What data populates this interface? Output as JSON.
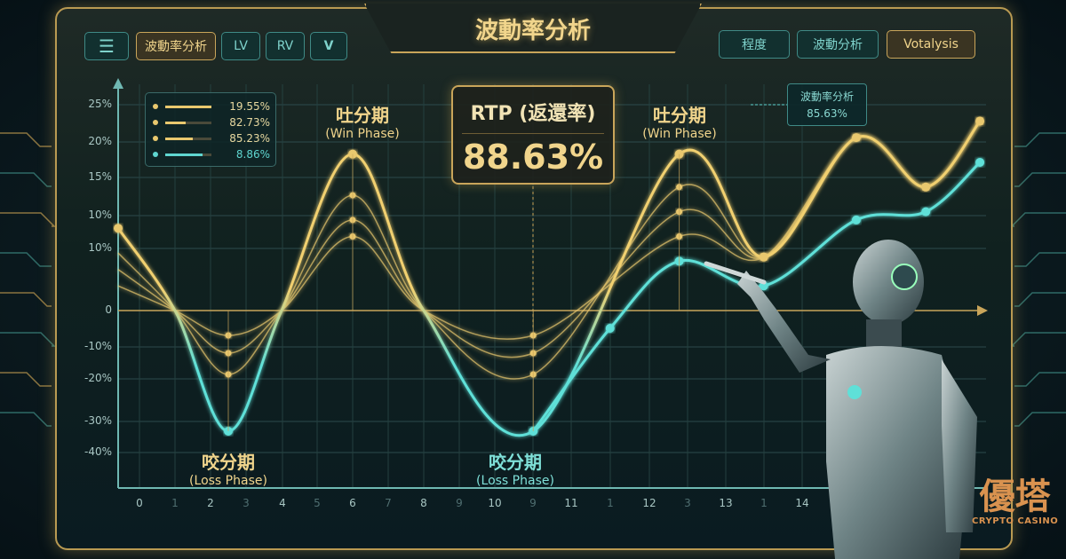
{
  "header": {
    "title": "波動率分析"
  },
  "toolbar": {
    "menu_icon": "hamburger-menu-icon",
    "left_buttons": [
      "波動率分析",
      "LV",
      "RV"
    ],
    "dropdown_icon": "chevron-down-icon",
    "right_buttons": [
      "程度",
      "波動分析",
      "Votalysis"
    ]
  },
  "legend": [
    {
      "value": "19.55%",
      "fill": 1.0,
      "color": "#e9c86e"
    },
    {
      "value": "82.73%",
      "fill": 0.45,
      "color": "#e9c86e"
    },
    {
      "value": "85.23%",
      "fill": 0.6,
      "color": "#e9c86e"
    },
    {
      "value": "8.86%",
      "fill": 0.8,
      "color": "#5fd6d0"
    }
  ],
  "rtp": {
    "label": "RTP (返還率)",
    "value": "88.63%"
  },
  "tooltip": {
    "title": "波動率分析",
    "value": "85.63%"
  },
  "phases": {
    "win1": {
      "zh": "吐分期",
      "en": "(Win Phase)"
    },
    "win2": {
      "zh": "吐分期",
      "en": "(Win Phase)"
    },
    "loss1": {
      "zh": "咬分期",
      "en": "(Loss Phase)"
    },
    "loss2": {
      "zh": "咬分期",
      "en": "(Loss Phase)"
    }
  },
  "brand": {
    "zh": "優塔",
    "en": "CRYPTO CASINO"
  },
  "colors": {
    "gold": "#e9c86e",
    "cyan": "#5fe0d8",
    "frame": "#b99a52"
  },
  "chart_data": {
    "type": "line",
    "title": "",
    "y_tick_labels": [
      "25%",
      "20%",
      "15%",
      "10%",
      "10%",
      "0",
      "-10%",
      "-20%",
      "-30%",
      "-40%"
    ],
    "x_tick_labels": [
      "0",
      "1",
      "2",
      "3",
      "4",
      "5",
      "6",
      "7",
      "8",
      "9",
      "10",
      "9",
      "11",
      "1",
      "12",
      "3",
      "13",
      "1",
      "14"
    ],
    "grid": true,
    "x": [
      -0.6,
      1,
      2.5,
      4,
      6,
      8,
      10.5,
      12.4,
      13.5,
      14.7,
      15.6,
      16.3
    ],
    "series": [
      {
        "values": [
          10,
          0,
          -34,
          0,
          19,
          0,
          -34,
          19,
          6.5,
          21,
          15,
          23
        ],
        "color": "#e9c86e"
      },
      {
        "values": [
          7,
          0,
          -18,
          0,
          14,
          0,
          -18,
          15,
          6.5,
          21,
          15,
          23
        ],
        "color": "#e9c86e"
      },
      {
        "values": [
          5,
          0,
          -12,
          0,
          11,
          0,
          -12,
          12,
          6.5,
          21,
          15,
          23
        ],
        "color": "#e9c86e"
      },
      {
        "values": [
          3,
          0,
          -7,
          0,
          9,
          0,
          -7,
          9,
          6.5,
          21,
          15,
          23
        ],
        "color": "#e9c86e"
      },
      {
        "x": [
          10.5,
          11.5,
          12.4,
          13.5,
          14.7,
          15.6,
          16.3
        ],
        "values": [
          -34,
          -5,
          6,
          3,
          11,
          12,
          18
        ],
        "color": "#5fe0d8"
      }
    ]
  }
}
